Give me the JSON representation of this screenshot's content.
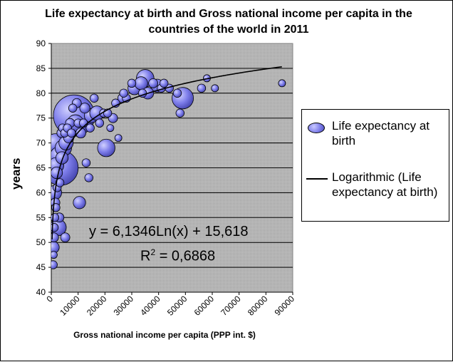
{
  "chart_data": {
    "type": "bubble",
    "title": "Life expectancy at birth and Gross national income per capita in the countries of the world in 2011",
    "xlabel": "Gross national income per capita (PPP int. $)",
    "ylabel": "years",
    "xlim": [
      0,
      90000
    ],
    "ylim": [
      40,
      90
    ],
    "x_ticks": [
      "0",
      "10000",
      "20000",
      "30000",
      "40000",
      "50000",
      "60000",
      "70000",
      "80000",
      "90000"
    ],
    "y_ticks": [
      "40",
      "45",
      "50",
      "55",
      "60",
      "65",
      "70",
      "75",
      "80",
      "85",
      "90"
    ],
    "grid": true,
    "legend_position": "right",
    "legend": [
      "Life expectancy at birth",
      "Logarithmic (Life expectancy at birth)"
    ],
    "series": [
      {
        "name": "Life expectancy at birth",
        "marker_color": "#7d7dea",
        "points": [
          {
            "x": 8500,
            "y": 75.5,
            "size": 1.0
          },
          {
            "x": 3500,
            "y": 65,
            "size": 0.72
          },
          {
            "x": 49000,
            "y": 79,
            "size": 0.27
          },
          {
            "x": 1500,
            "y": 70,
            "size": 0.2
          },
          {
            "x": 2800,
            "y": 67.5,
            "size": 0.17
          },
          {
            "x": 1800,
            "y": 65.5,
            "size": 0.14
          },
          {
            "x": 9000,
            "y": 74,
            "size": 0.16
          },
          {
            "x": 35000,
            "y": 83,
            "size": 0.18
          },
          {
            "x": 20500,
            "y": 69,
            "size": 0.18
          },
          {
            "x": 2500,
            "y": 53,
            "size": 0.16
          },
          {
            "x": 4500,
            "y": 69,
            "size": 0.16
          },
          {
            "x": 5500,
            "y": 70,
            "size": 0.12
          },
          {
            "x": 1200,
            "y": 60,
            "size": 0.12
          },
          {
            "x": 15000,
            "y": 75.5,
            "size": 0.12
          },
          {
            "x": 17000,
            "y": 76,
            "size": 0.12
          },
          {
            "x": 10500,
            "y": 58,
            "size": 0.09
          },
          {
            "x": 4000,
            "y": 67,
            "size": 0.09
          },
          {
            "x": 800,
            "y": 49,
            "size": 0.08
          },
          {
            "x": 31000,
            "y": 81,
            "size": 0.1
          },
          {
            "x": 33500,
            "y": 82,
            "size": 0.1
          },
          {
            "x": 39500,
            "y": 81.5,
            "size": 0.1
          },
          {
            "x": 36000,
            "y": 80,
            "size": 0.08
          },
          {
            "x": 2000,
            "y": 64,
            "size": 0.08
          },
          {
            "x": 6500,
            "y": 71,
            "size": 0.06
          },
          {
            "x": 12500,
            "y": 77,
            "size": 0.06
          },
          {
            "x": 11000,
            "y": 72,
            "size": 0.06
          },
          {
            "x": 3000,
            "y": 55,
            "size": 0.05
          },
          {
            "x": 1000,
            "y": 51,
            "size": 0.05
          },
          {
            "x": 1500,
            "y": 58,
            "size": 0.05
          },
          {
            "x": 5200,
            "y": 51,
            "size": 0.05
          },
          {
            "x": 26500,
            "y": 79,
            "size": 0.05
          },
          {
            "x": 23000,
            "y": 75,
            "size": 0.05
          },
          {
            "x": 28000,
            "y": 79,
            "size": 0.04
          },
          {
            "x": 38000,
            "y": 82,
            "size": 0.05
          },
          {
            "x": 41000,
            "y": 81,
            "size": 0.04
          },
          {
            "x": 44000,
            "y": 81,
            "size": 0.04
          },
          {
            "x": 56000,
            "y": 81,
            "size": 0.04
          },
          {
            "x": 58000,
            "y": 83,
            "size": 0.03
          },
          {
            "x": 61000,
            "y": 81,
            "size": 0.03
          },
          {
            "x": 86000,
            "y": 82,
            "size": 0.03
          },
          {
            "x": 48000,
            "y": 76,
            "size": 0.04
          },
          {
            "x": 14000,
            "y": 63,
            "size": 0.04
          },
          {
            "x": 13000,
            "y": 66,
            "size": 0.04
          },
          {
            "x": 19500,
            "y": 76,
            "size": 0.04
          },
          {
            "x": 21000,
            "y": 76,
            "size": 0.04
          },
          {
            "x": 700,
            "y": 45.5,
            "size": 0.04
          },
          {
            "x": 900,
            "y": 47.5,
            "size": 0.03
          },
          {
            "x": 1100,
            "y": 53,
            "size": 0.04
          },
          {
            "x": 1300,
            "y": 55,
            "size": 0.04
          },
          {
            "x": 1700,
            "y": 57,
            "size": 0.04
          },
          {
            "x": 2200,
            "y": 61,
            "size": 0.04
          },
          {
            "x": 3200,
            "y": 62,
            "size": 0.04
          },
          {
            "x": 3800,
            "y": 72,
            "size": 0.05
          },
          {
            "x": 4200,
            "y": 73,
            "size": 0.04
          },
          {
            "x": 5000,
            "y": 72,
            "size": 0.04
          },
          {
            "x": 6000,
            "y": 73,
            "size": 0.04
          },
          {
            "x": 7000,
            "y": 74,
            "size": 0.05
          },
          {
            "x": 7500,
            "y": 72,
            "size": 0.04
          },
          {
            "x": 8000,
            "y": 77,
            "size": 0.04
          },
          {
            "x": 9500,
            "y": 78,
            "size": 0.05
          },
          {
            "x": 10000,
            "y": 74,
            "size": 0.04
          },
          {
            "x": 12000,
            "y": 74,
            "size": 0.04
          },
          {
            "x": 14500,
            "y": 73,
            "size": 0.04
          },
          {
            "x": 16000,
            "y": 79,
            "size": 0.04
          },
          {
            "x": 18000,
            "y": 74,
            "size": 0.04
          },
          {
            "x": 24000,
            "y": 78,
            "size": 0.04
          },
          {
            "x": 27000,
            "y": 80,
            "size": 0.04
          },
          {
            "x": 30000,
            "y": 82,
            "size": 0.04
          },
          {
            "x": 34000,
            "y": 80,
            "size": 0.04
          },
          {
            "x": 42000,
            "y": 82,
            "size": 0.04
          },
          {
            "x": 47000,
            "y": 80,
            "size": 0.04
          },
          {
            "x": 25000,
            "y": 71,
            "size": 0.03
          },
          {
            "x": 22000,
            "y": 73,
            "size": 0.03
          }
        ]
      },
      {
        "name": "Logarithmic (Life expectancy at birth)",
        "type": "trendline",
        "equation": "y = 6,1346Ln(x) + 15,618",
        "r_squared": "0,6868",
        "coefficient": 6.1346,
        "intercept": 15.618,
        "color": "#000000"
      }
    ]
  },
  "labels": {
    "title": "Life expectancy at birth and Gross national income per capita in the countries of the world in 2011",
    "ylabel": "years",
    "xlabel": "Gross national income per capita (PPP int. $)",
    "legend_1": "Life expectancy at birth",
    "legend_2": "Logarithmic (Life expectancy at birth)",
    "equation": "y = 6,1346Ln(x) + 15,618",
    "r2_prefix": "R",
    "r2_exp": "2",
    "r2_value": " = 0,6868"
  }
}
